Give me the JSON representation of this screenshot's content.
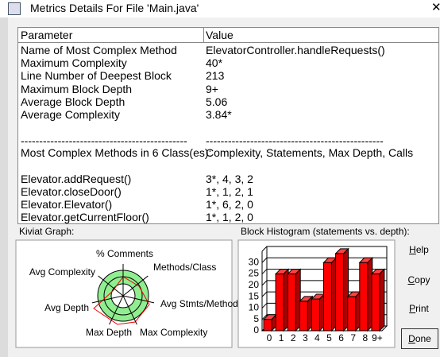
{
  "window": {
    "title": "Metrics Details For File 'Main.java'"
  },
  "table": {
    "headers": [
      "Parameter",
      "Value"
    ],
    "rows": [
      [
        "Name of Most Complex Method",
        "ElevatorController.handleRequests()"
      ],
      [
        "Maximum Complexity",
        "40*"
      ],
      [
        "Line Number of Deepest Block",
        "213"
      ],
      [
        "Maximum Block Depth",
        "9+"
      ],
      [
        "Average Block Depth",
        "5.06"
      ],
      [
        "Average Complexity",
        "3.84*"
      ],
      [
        "---------------------------------------------",
        "------------------------------------------------"
      ],
      [
        "Most Complex Methods in 6 Class(es):",
        "Complexity, Statements, Max Depth, Calls"
      ],
      [
        "Elevator.addRequest()",
        "3*, 4, 3, 2"
      ],
      [
        "Elevator.closeDoor()",
        "1*, 1, 2, 1"
      ],
      [
        "Elevator.Elevator()",
        "1*, 6, 2, 0"
      ],
      [
        "Elevator.getCurrentFloor()",
        "1*, 1, 2, 0"
      ]
    ]
  },
  "kiviat": {
    "label": "Kiviat Graph:",
    "axes": [
      "% Comments",
      "Methods/Class",
      "Avg Stmts/Method",
      "Max Complexity",
      "Max Depth",
      "Avg Depth",
      "Avg Complexity"
    ]
  },
  "histogram_label": "Block Histogram (statements vs. depth):",
  "chart_data": {
    "type": "bar",
    "categories": [
      "0",
      "1",
      "2",
      "3",
      "4",
      "5",
      "6",
      "7",
      "8",
      "9+"
    ],
    "values": [
      5,
      25,
      25,
      13,
      14,
      30,
      34,
      15,
      30,
      25
    ],
    "color": "#ff0000",
    "ylim": [
      0,
      35
    ],
    "yticks": [
      0,
      5,
      10,
      15,
      20,
      25,
      30
    ],
    "grid": true
  },
  "buttons": [
    "Help",
    "Copy",
    "Print",
    "Done"
  ]
}
